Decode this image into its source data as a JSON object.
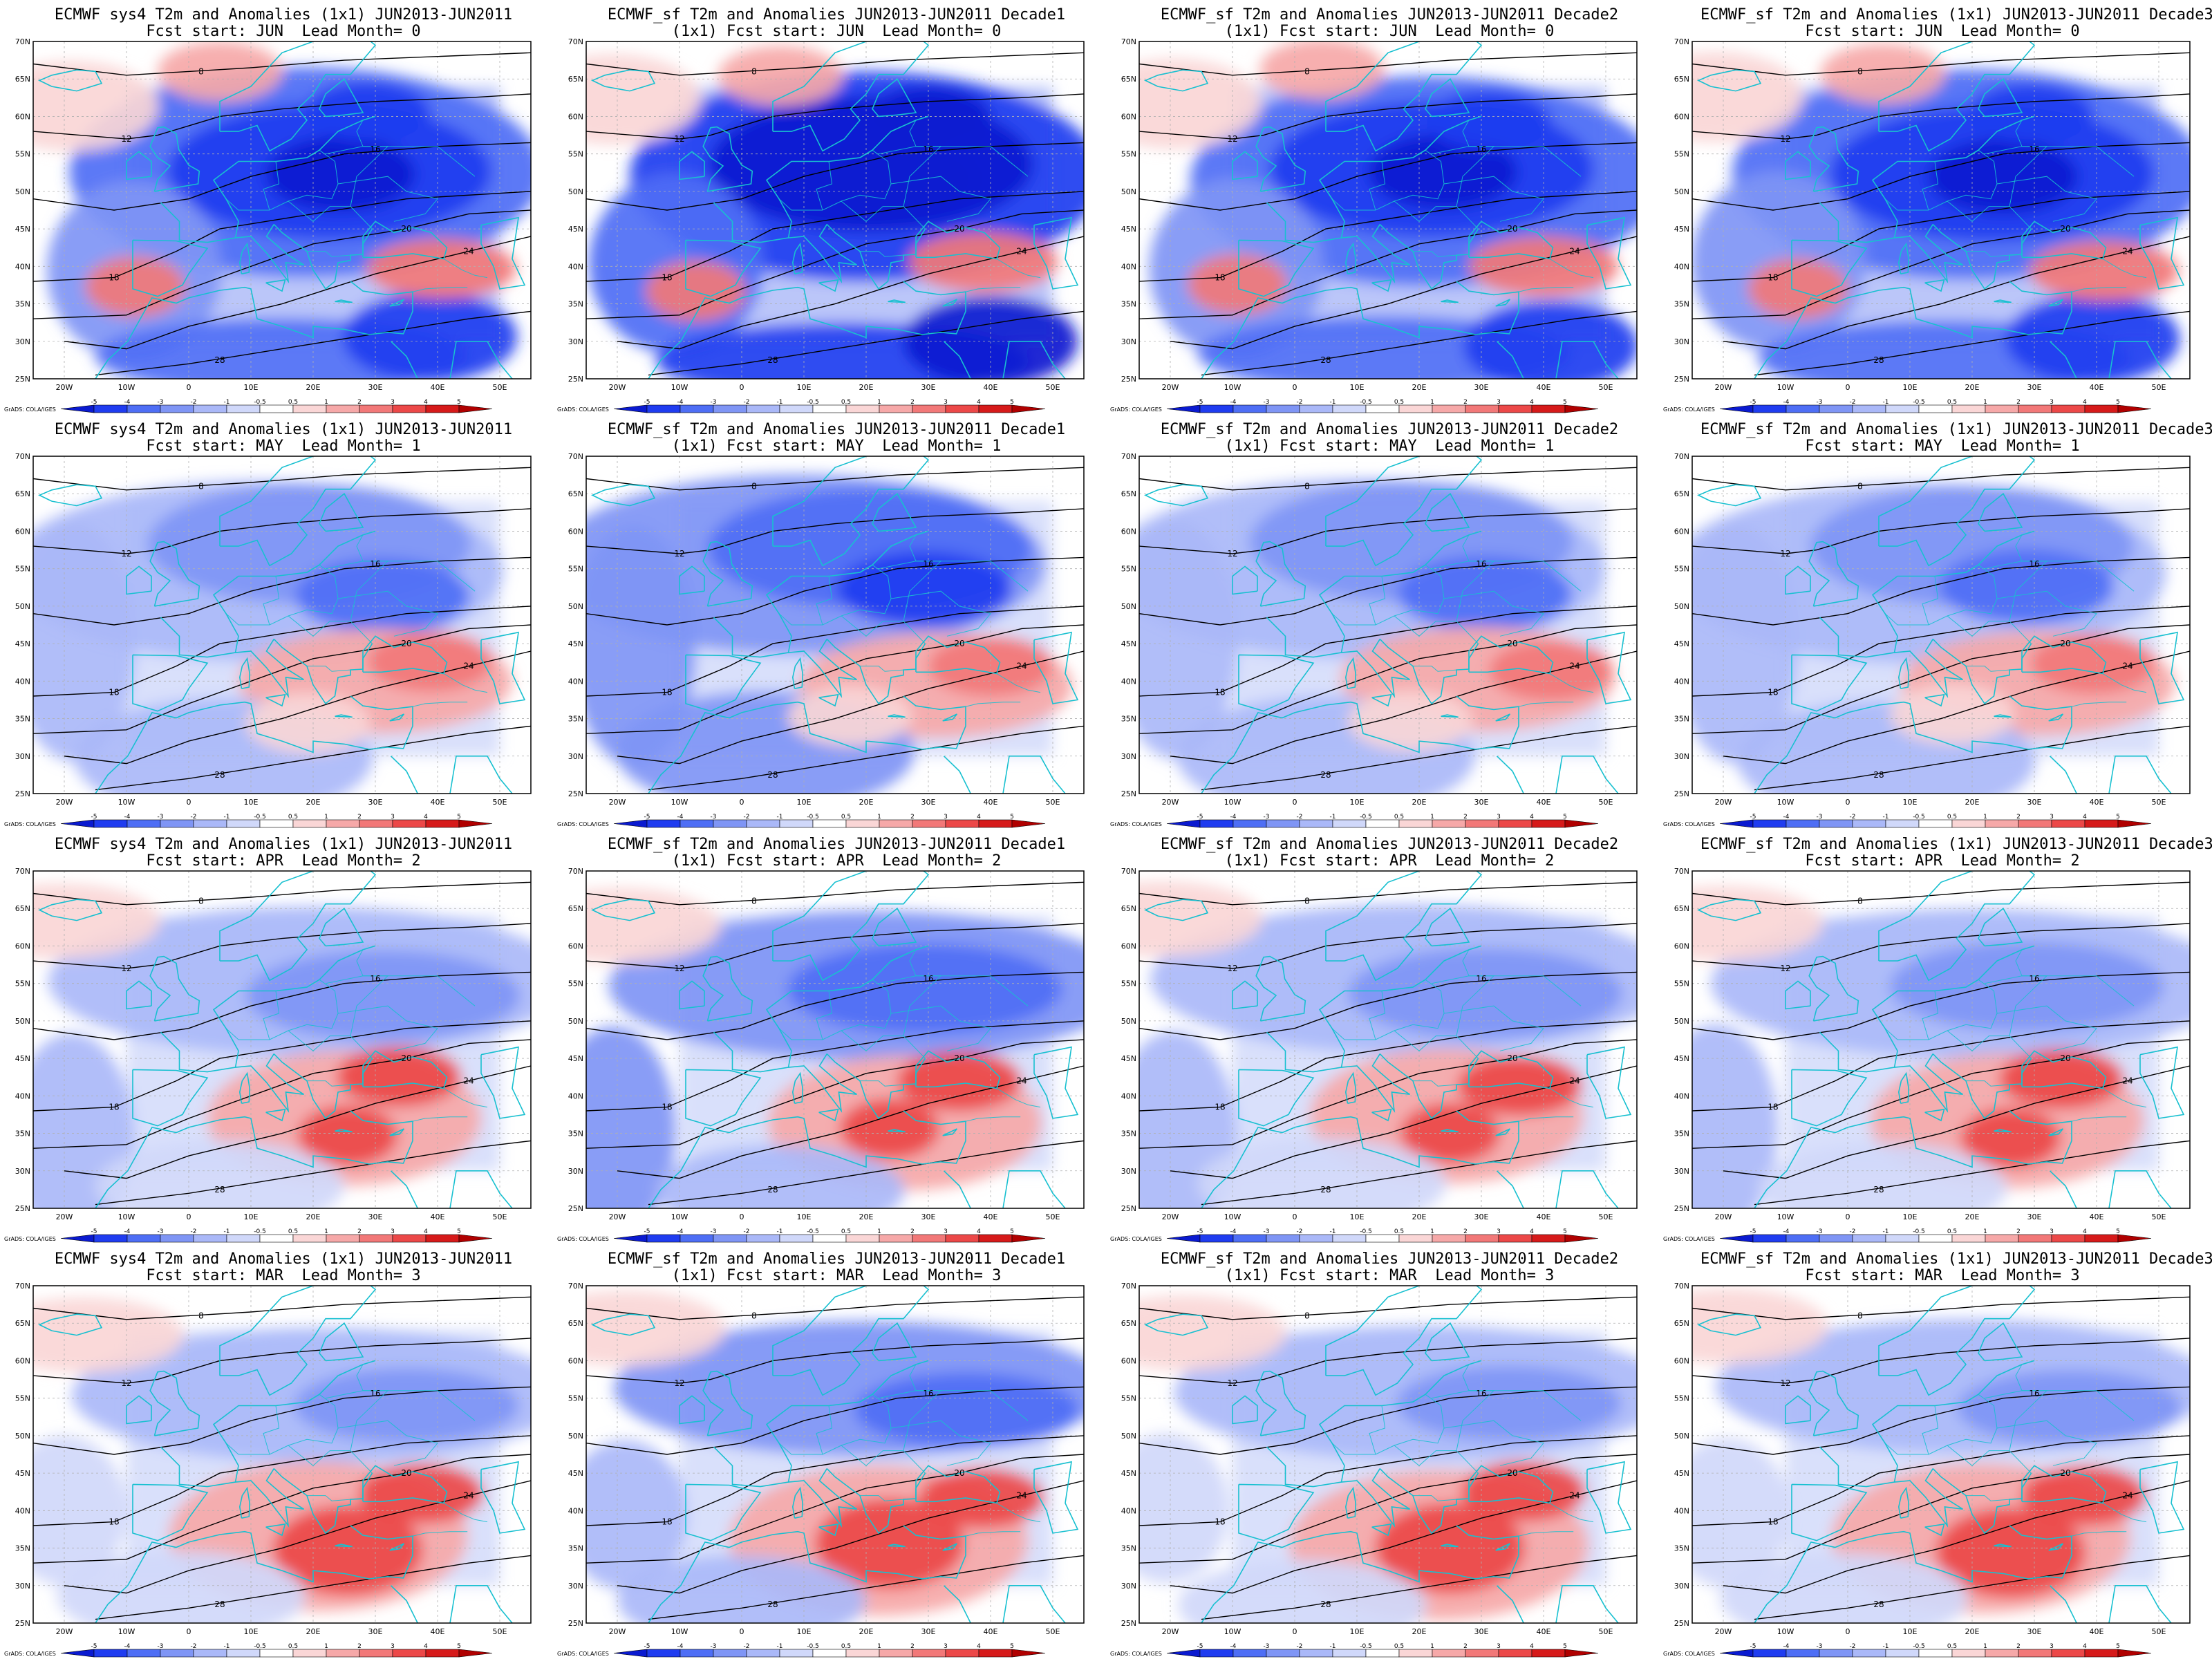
{
  "colors": {
    "neg": [
      "#0a1ad0",
      "#1f3cf0",
      "#4e6ef5",
      "#7f95f5",
      "#aab8f8",
      "#d0d8fa"
    ],
    "pos": [
      "#fad6d6",
      "#f6a8a8",
      "#f27878",
      "#ec4848",
      "#d61a1a",
      "#b00000"
    ],
    "neutral": "#ffffff",
    "coast": "#18c0d0",
    "contour": "#000000",
    "grid": "#b0b0b0"
  },
  "map": {
    "lat_labels": [
      "70N",
      "65N",
      "60N",
      "55N",
      "50N",
      "45N",
      "40N",
      "35N",
      "30N",
      "25N"
    ],
    "lon_labels": [
      "20W",
      "10W",
      "0",
      "10E",
      "20E",
      "30E",
      "40E",
      "50E"
    ],
    "colorbar_labels": [
      "-5",
      "-4",
      "-3",
      "-2",
      "-1",
      "-0.5",
      "0.5",
      "1",
      "2",
      "3",
      "4",
      "5"
    ],
    "credit": "GrADS: COLA/IGES"
  },
  "rows": [
    {
      "fcst_start": "JUN",
      "lead_month": 0,
      "pattern": "cold-north"
    },
    {
      "fcst_start": "MAY",
      "lead_month": 1,
      "pattern": "mixed"
    },
    {
      "fcst_start": "APR",
      "lead_month": 2,
      "pattern": "warm-south"
    },
    {
      "fcst_start": "MAR",
      "lead_month": 3,
      "pattern": "warm-south-strong"
    }
  ],
  "panels": [
    {
      "title1": "ECMWF sys4 T2m and Anomalies (1x1) JUN2013-JUN2011",
      "title2": "Fcst start: JUN  Lead Month= 0"
    },
    {
      "title1": "ECMWF_sf T2m and Anomalies JUN2013-JUN2011 Decade1",
      "title2": "(1x1) Fcst start: JUN  Lead Month= 0"
    },
    {
      "title1": "ECMWF_sf T2m and Anomalies JUN2013-JUN2011 Decade2",
      "title2": "(1x1) Fcst start: JUN  Lead Month= 0"
    },
    {
      "title1": "ECMWF_sf T2m and Anomalies (1x1) JUN2013-JUN2011 Decade3",
      "title2": "Fcst start: JUN  Lead Month= 0"
    },
    {
      "title1": "ECMWF sys4 T2m and Anomalies (1x1) JUN2013-JUN2011",
      "title2": "Fcst start: MAY  Lead Month= 1"
    },
    {
      "title1": "ECMWF_sf T2m and Anomalies JUN2013-JUN2011 Decade1",
      "title2": "(1x1) Fcst start: MAY  Lead Month= 1"
    },
    {
      "title1": "ECMWF_sf T2m and Anomalies JUN2013-JUN2011 Decade2",
      "title2": "(1x1) Fcst start: MAY  Lead Month= 1"
    },
    {
      "title1": "ECMWF_sf T2m and Anomalies (1x1) JUN2013-JUN2011 Decade3",
      "title2": "Fcst start: MAY  Lead Month= 1"
    },
    {
      "title1": "ECMWF sys4 T2m and Anomalies (1x1) JUN2013-JUN2011",
      "title2": "Fcst start: APR  Lead Month= 2"
    },
    {
      "title1": "ECMWF_sf T2m and Anomalies JUN2013-JUN2011 Decade1",
      "title2": "(1x1) Fcst start: APR  Lead Month= 2"
    },
    {
      "title1": "ECMWF_sf T2m and Anomalies JUN2013-JUN2011 Decade2",
      "title2": "(1x1) Fcst start: APR  Lead Month= 2"
    },
    {
      "title1": "ECMWF_sf T2m and Anomalies (1x1) JUN2013-JUN2011 Decade3",
      "title2": "Fcst start: APR  Lead Month= 2"
    },
    {
      "title1": "ECMWF sys4 T2m and Anomalies (1x1) JUN2013-JUN2011",
      "title2": "Fcst start: MAR  Lead Month= 3"
    },
    {
      "title1": "ECMWF_sf T2m and Anomalies JUN2013-JUN2011 Decade1",
      "title2": "(1x1) Fcst start: MAR  Lead Month= 3"
    },
    {
      "title1": "ECMWF_sf T2m and Anomalies JUN2013-JUN2011 Decade2",
      "title2": "(1x1) Fcst start: MAR  Lead Month= 3"
    },
    {
      "title1": "ECMWF_sf T2m and Anomalies (1x1) JUN2013-JUN2011 Decade3",
      "title2": "Fcst start: MAR  Lead Month= 3"
    }
  ],
  "contour_labels": [
    "8",
    "12",
    "16",
    "18",
    "20",
    "24",
    "28"
  ]
}
